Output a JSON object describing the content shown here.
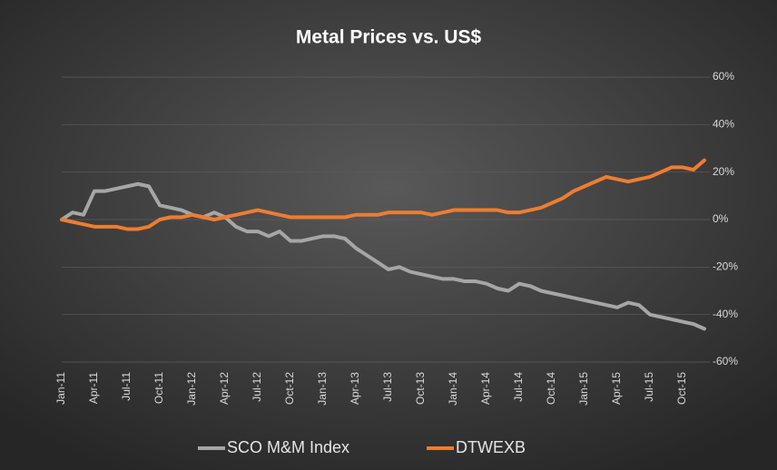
{
  "chart_data": {
    "type": "line",
    "title": "Metal Prices vs. US$",
    "categories": [
      "Jan-11",
      null,
      null,
      "Apr-11",
      null,
      null,
      "Jul-11",
      null,
      null,
      "Oct-11",
      null,
      null,
      "Jan-12",
      null,
      null,
      "Apr-12",
      null,
      null,
      "Jul-12",
      null,
      null,
      "Oct-12",
      null,
      null,
      "Jan-13",
      null,
      null,
      "Apr-13",
      null,
      null,
      "Jul-13",
      null,
      null,
      "Oct-13",
      null,
      null,
      "Jan-14",
      null,
      null,
      "Apr-14",
      null,
      null,
      "Jul-14",
      null,
      null,
      "Oct-14",
      null,
      null,
      "Jan-15",
      null,
      null,
      "Apr-15",
      null,
      null,
      "Jul-15",
      null,
      null,
      "Oct-15",
      null,
      null
    ],
    "series": [
      {
        "name": "SCO M&M Index",
        "color": "#a6a6a6",
        "values": [
          0,
          3,
          2,
          12,
          12,
          13,
          14,
          15,
          14,
          6,
          5,
          4,
          2,
          1,
          3,
          1,
          -3,
          -5,
          -5,
          -7,
          -5,
          -9,
          -9,
          -8,
          -7,
          -7,
          -8,
          -12,
          -15,
          -18,
          -21,
          -20,
          -22,
          -23,
          -24,
          -25,
          -25,
          -26,
          -26,
          -27,
          -29,
          -30,
          -27,
          -28,
          -30,
          -31,
          -32,
          -33,
          -34,
          -35,
          -36,
          -37,
          -35,
          -36,
          -40,
          -41,
          -42,
          -43,
          -44,
          -46
        ]
      },
      {
        "name": "DTWEXB",
        "color": "#ed7d31",
        "values": [
          0,
          -1,
          -2,
          -3,
          -3,
          -3,
          -4,
          -4,
          -3,
          0,
          1,
          1,
          2,
          1,
          0,
          1,
          2,
          3,
          4,
          3,
          2,
          1,
          1,
          1,
          1,
          1,
          1,
          2,
          2,
          2,
          3,
          3,
          3,
          3,
          2,
          3,
          4,
          4,
          4,
          4,
          4,
          3,
          3,
          4,
          5,
          7,
          9,
          12,
          14,
          16,
          18,
          17,
          16,
          17,
          18,
          20,
          22,
          22,
          21,
          25
        ]
      }
    ],
    "ylim": [
      -60,
      60
    ],
    "yticks": [
      {
        "value": -60,
        "label": "-60%"
      },
      {
        "value": -40,
        "label": "-40%"
      },
      {
        "value": -20,
        "label": "-20%"
      },
      {
        "value": 0,
        "label": "0%"
      },
      {
        "value": 20,
        "label": "20%"
      },
      {
        "value": 40,
        "label": "40%"
      },
      {
        "value": 60,
        "label": "60%"
      }
    ],
    "grid": true,
    "legend": "bottom"
  }
}
